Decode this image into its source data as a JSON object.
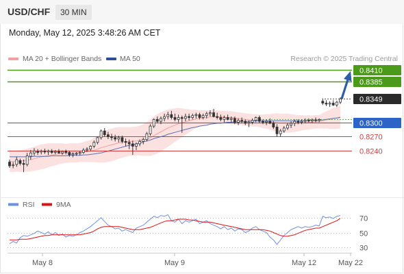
{
  "header": {
    "symbol": "USD/CHF",
    "timeframe": "30 MIN"
  },
  "timestamp": "Monday, May 12, 2025 3:48:26 AM CET",
  "credit": "Research © 2025 Trading Central",
  "colors": {
    "resistance": "#4c9a1a",
    "pivot": "#2b63c6",
    "support": "#d63b3b",
    "candle": "#333333",
    "band": "#fbdada",
    "ma20": "#f2a0a0",
    "ma50": "#5a6fb5",
    "rsi": "#6d8fe6",
    "rsi_ma": "#e11111",
    "arrow": "#2f5ea8"
  },
  "chart_data": [
    {
      "type": "candlestick",
      "legend": [
        {
          "name": "MA 20 + Bollinger Bands",
          "color": "#f2a0a0"
        },
        {
          "name": "MA 50",
          "color": "#2b4f9a"
        }
      ],
      "ylim": [
        0.8152,
        0.8418
      ],
      "levels": [
        {
          "value": 0.841,
          "label": "0.8410",
          "kind": "resistance"
        },
        {
          "value": 0.8385,
          "label": "0.8385",
          "kind": "resistance"
        },
        {
          "value": 0.8349,
          "label": "0.8349",
          "kind": "last"
        },
        {
          "value": 0.83,
          "label": "0.8300",
          "kind": "pivot"
        },
        {
          "value": 0.827,
          "label": "0.8270",
          "kind": "support"
        },
        {
          "value": 0.824,
          "label": "0.8240",
          "kind": "support"
        }
      ],
      "x_ticks": [
        "May 8",
        "May 9",
        "May 12",
        "May 22"
      ],
      "ohlc": [
        [
          0.8217,
          0.8222,
          0.8205,
          0.8209
        ],
        [
          0.821,
          0.8217,
          0.8204,
          0.8211
        ],
        [
          0.8212,
          0.8228,
          0.8207,
          0.8222
        ],
        [
          0.822,
          0.8224,
          0.821,
          0.8214
        ],
        [
          0.8214,
          0.8222,
          0.8196,
          0.8212
        ],
        [
          0.8212,
          0.8236,
          0.8208,
          0.823
        ],
        [
          0.8229,
          0.8242,
          0.8222,
          0.8236
        ],
        [
          0.8236,
          0.8246,
          0.823,
          0.824
        ],
        [
          0.8239,
          0.8244,
          0.8232,
          0.8237
        ],
        [
          0.8238,
          0.8243,
          0.8233,
          0.824
        ],
        [
          0.824,
          0.8245,
          0.8234,
          0.8238
        ],
        [
          0.8238,
          0.8243,
          0.8232,
          0.824
        ],
        [
          0.824,
          0.8244,
          0.8234,
          0.8237
        ],
        [
          0.8237,
          0.8242,
          0.8233,
          0.8239
        ],
        [
          0.8239,
          0.8244,
          0.8234,
          0.8236
        ],
        [
          0.8236,
          0.8241,
          0.8232,
          0.8239
        ],
        [
          0.8239,
          0.8243,
          0.8233,
          0.8237
        ],
        [
          0.8237,
          0.824,
          0.8228,
          0.8232
        ],
        [
          0.8232,
          0.8237,
          0.8227,
          0.8234
        ],
        [
          0.8234,
          0.8238,
          0.823,
          0.8235
        ],
        [
          0.8235,
          0.824,
          0.8231,
          0.8237
        ],
        [
          0.8237,
          0.8246,
          0.8234,
          0.8242
        ],
        [
          0.8242,
          0.8248,
          0.8238,
          0.8244
        ],
        [
          0.8244,
          0.8252,
          0.824,
          0.825
        ],
        [
          0.825,
          0.8262,
          0.8246,
          0.8258
        ],
        [
          0.8258,
          0.827,
          0.8254,
          0.8268
        ],
        [
          0.8268,
          0.8285,
          0.8264,
          0.8282
        ],
        [
          0.8282,
          0.8288,
          0.827,
          0.8274
        ],
        [
          0.8274,
          0.828,
          0.8265,
          0.827
        ],
        [
          0.827,
          0.8276,
          0.8262,
          0.8268
        ],
        [
          0.8268,
          0.8274,
          0.826,
          0.8265
        ],
        [
          0.8265,
          0.8272,
          0.8258,
          0.8268
        ],
        [
          0.8268,
          0.8272,
          0.8256,
          0.826
        ],
        [
          0.826,
          0.8266,
          0.825,
          0.8258
        ],
        [
          0.8258,
          0.8264,
          0.8244,
          0.8255
        ],
        [
          0.8255,
          0.8262,
          0.8232,
          0.825
        ],
        [
          0.825,
          0.8258,
          0.8242,
          0.8255
        ],
        [
          0.8255,
          0.8264,
          0.825,
          0.826
        ],
        [
          0.826,
          0.8268,
          0.8254,
          0.8264
        ],
        [
          0.8264,
          0.828,
          0.826,
          0.8276
        ],
        [
          0.8276,
          0.8296,
          0.8272,
          0.8292
        ],
        [
          0.8292,
          0.8308,
          0.8288,
          0.8306
        ],
        [
          0.8306,
          0.8312,
          0.8298,
          0.8302
        ],
        [
          0.8302,
          0.8312,
          0.8296,
          0.8308
        ],
        [
          0.8308,
          0.8318,
          0.8302,
          0.8312
        ],
        [
          0.8312,
          0.8322,
          0.8306,
          0.8316
        ],
        [
          0.8316,
          0.8324,
          0.8306,
          0.831
        ],
        [
          0.831,
          0.8318,
          0.8302,
          0.8306
        ],
        [
          0.8306,
          0.8316,
          0.83,
          0.831
        ],
        [
          0.831,
          0.8314,
          0.8278,
          0.8308
        ],
        [
          0.8308,
          0.8318,
          0.8302,
          0.8312
        ],
        [
          0.8312,
          0.8318,
          0.8304,
          0.831
        ],
        [
          0.831,
          0.8318,
          0.8306,
          0.8314
        ],
        [
          0.8314,
          0.832,
          0.8308,
          0.8316
        ],
        [
          0.8316,
          0.832,
          0.8306,
          0.831
        ],
        [
          0.831,
          0.8318,
          0.8306,
          0.8314
        ],
        [
          0.8314,
          0.8322,
          0.8308,
          0.8318
        ],
        [
          0.8318,
          0.8325,
          0.8312,
          0.832
        ],
        [
          0.832,
          0.8328,
          0.831,
          0.8312
        ],
        [
          0.8312,
          0.832,
          0.8306,
          0.831
        ],
        [
          0.831,
          0.8316,
          0.8302,
          0.8306
        ],
        [
          0.8306,
          0.8314,
          0.83,
          0.831
        ],
        [
          0.831,
          0.8316,
          0.8304,
          0.8306
        ],
        [
          0.8306,
          0.8312,
          0.83,
          0.8308
        ],
        [
          0.8308,
          0.8312,
          0.8296,
          0.83
        ],
        [
          0.83,
          0.8308,
          0.8294,
          0.8304
        ],
        [
          0.8304,
          0.831,
          0.8298,
          0.8302
        ],
        [
          0.8302,
          0.8306,
          0.8294,
          0.8298
        ],
        [
          0.8298,
          0.8304,
          0.829,
          0.83
        ],
        [
          0.83,
          0.8308,
          0.8296,
          0.8304
        ],
        [
          0.8304,
          0.8312,
          0.83,
          0.831
        ],
        [
          0.831,
          0.8314,
          0.8298,
          0.8302
        ],
        [
          0.8302,
          0.8306,
          0.8296,
          0.83
        ],
        [
          0.83,
          0.8306,
          0.8294,
          0.8302
        ],
        [
          0.8302,
          0.8308,
          0.8296,
          0.8298
        ],
        [
          0.8298,
          0.8302,
          0.8286,
          0.829
        ],
        [
          0.829,
          0.8296,
          0.827,
          0.8276
        ],
        [
          0.8276,
          0.8286,
          0.827,
          0.8282
        ],
        [
          0.8282,
          0.8292,
          0.8278,
          0.8288
        ],
        [
          0.8288,
          0.8298,
          0.8284,
          0.8294
        ],
        [
          0.8294,
          0.8302,
          0.8288,
          0.8298
        ],
        [
          0.8298,
          0.8306,
          0.8292,
          0.8302
        ],
        [
          0.8302,
          0.8306,
          0.8296,
          0.83
        ],
        [
          0.83,
          0.8306,
          0.8296,
          0.8302
        ],
        [
          0.8302,
          0.8308,
          0.8298,
          0.8304
        ],
        [
          0.8304,
          0.8308,
          0.83,
          0.8303
        ],
        [
          0.8303,
          0.8308,
          0.8299,
          0.8305
        ],
        [
          0.8305,
          0.831,
          0.83,
          0.8304
        ],
        [
          0.8304,
          0.8308,
          0.83,
          0.8306
        ],
        [
          0.8344,
          0.835,
          0.8336,
          0.834
        ],
        [
          0.834,
          0.8346,
          0.8334,
          0.8338
        ],
        [
          0.8338,
          0.8344,
          0.8332,
          0.834
        ],
        [
          0.834,
          0.8346,
          0.8334,
          0.8336
        ],
        [
          0.8336,
          0.8345,
          0.8332,
          0.8342
        ],
        [
          0.8342,
          0.8352,
          0.8338,
          0.8349
        ]
      ],
      "ma20": [
        0.8218,
        0.8218,
        0.8219,
        0.8219,
        0.822,
        0.8221,
        0.8222,
        0.8224,
        0.8226,
        0.8228,
        0.8229,
        0.8231,
        0.8232,
        0.8233,
        0.8234,
        0.8235,
        0.8235,
        0.8236,
        0.8236,
        0.8236,
        0.8237,
        0.8238,
        0.8239,
        0.824,
        0.8242,
        0.8244,
        0.8247,
        0.8249,
        0.8251,
        0.8253,
        0.8255,
        0.8257,
        0.8258,
        0.8259,
        0.826,
        0.826,
        0.8261,
        0.8262,
        0.8263,
        0.8265,
        0.8268,
        0.8272,
        0.8276,
        0.828,
        0.8284,
        0.8288,
        0.8291,
        0.8294,
        0.8297,
        0.8299,
        0.8301,
        0.8303,
        0.8305,
        0.8307,
        0.8308,
        0.8309,
        0.831,
        0.8311,
        0.8312,
        0.8312,
        0.8311,
        0.8311,
        0.831,
        0.831,
        0.8309,
        0.8308,
        0.8307,
        0.8306,
        0.8305,
        0.8304,
        0.8304,
        0.8303,
        0.8302,
        0.8302,
        0.8301,
        0.83,
        0.8299,
        0.8298,
        0.8298,
        0.8298,
        0.8298,
        0.8298,
        0.8298,
        0.8299,
        0.8299,
        0.83,
        0.83,
        0.8301,
        0.8301,
        0.8303,
        0.8305,
        0.8306,
        0.8308,
        0.8309,
        0.8311
      ],
      "bb_width": [
        0.0022,
        0.0022,
        0.0022,
        0.0023,
        0.0023,
        0.0024,
        0.0025,
        0.0025,
        0.0026,
        0.0026,
        0.0026,
        0.0025,
        0.0024,
        0.0023,
        0.0022,
        0.0021,
        0.002,
        0.002,
        0.002,
        0.002,
        0.002,
        0.0021,
        0.0022,
        0.0023,
        0.0025,
        0.0028,
        0.0031,
        0.0033,
        0.0034,
        0.0034,
        0.0034,
        0.0033,
        0.0032,
        0.0031,
        0.003,
        0.003,
        0.003,
        0.0031,
        0.0033,
        0.0035,
        0.0038,
        0.004,
        0.0041,
        0.0041,
        0.004,
        0.0039,
        0.0037,
        0.0035,
        0.0033,
        0.003,
        0.0027,
        0.0024,
        0.0021,
        0.0019,
        0.0017,
        0.0016,
        0.0015,
        0.0014,
        0.0014,
        0.0013,
        0.0013,
        0.0013,
        0.0013,
        0.0013,
        0.0013,
        0.0013,
        0.0013,
        0.0013,
        0.0013,
        0.0013,
        0.0013,
        0.0013,
        0.0014,
        0.0015,
        0.0016,
        0.0018,
        0.002,
        0.002,
        0.002,
        0.002,
        0.0019,
        0.0018,
        0.0017,
        0.0016,
        0.0015,
        0.0015,
        0.0014,
        0.0014,
        0.0014,
        0.0016,
        0.0018,
        0.002,
        0.0022,
        0.0023,
        0.0024
      ],
      "ma50": [
        0.8228,
        0.8228,
        0.8228,
        0.8228,
        0.8228,
        0.8228,
        0.8228,
        0.8229,
        0.8229,
        0.8229,
        0.8229,
        0.8229,
        0.823,
        0.823,
        0.823,
        0.823,
        0.823,
        0.8231,
        0.8231,
        0.8231,
        0.8231,
        0.8232,
        0.8232,
        0.8233,
        0.8234,
        0.8235,
        0.8236,
        0.8238,
        0.824,
        0.8242,
        0.8244,
        0.8246,
        0.8248,
        0.825,
        0.8252,
        0.8253,
        0.8255,
        0.8257,
        0.8259,
        0.8261,
        0.8263,
        0.8266,
        0.8268,
        0.827,
        0.8272,
        0.8275,
        0.8277,
        0.8279,
        0.8281,
        0.8283,
        0.8285,
        0.8287,
        0.8289,
        0.829,
        0.8292,
        0.8293,
        0.8294,
        0.8296,
        0.8297,
        0.8298,
        0.8298,
        0.8299,
        0.83,
        0.83,
        0.8301,
        0.8301,
        0.8302,
        0.8302,
        0.8302,
        0.8302,
        0.8303,
        0.8303,
        0.8303,
        0.8303,
        0.8303,
        0.8303,
        0.8303,
        0.8303,
        0.8303,
        0.8303,
        0.8303,
        0.8303,
        0.8303,
        0.8303,
        0.8303,
        0.8304,
        0.8304,
        0.8304,
        0.8304,
        0.8305,
        0.8306,
        0.8307,
        0.8308,
        0.8309,
        0.831
      ],
      "projection": {
        "from": 0.8349,
        "to": 0.841
      }
    },
    {
      "type": "line",
      "legend": [
        {
          "name": "RSI",
          "color": "#6d8fe6"
        },
        {
          "name": "9MA",
          "color": "#e11111"
        }
      ],
      "ylim": [
        20,
        80
      ],
      "y_ticks": [
        70,
        50,
        30
      ],
      "rsi": [
        35,
        38,
        36,
        43,
        46,
        45,
        47,
        49,
        52,
        50,
        48,
        51,
        47,
        50,
        46,
        48,
        44,
        46,
        45,
        47,
        50,
        52,
        55,
        58,
        62,
        66,
        70,
        65,
        60,
        58,
        55,
        56,
        52,
        54,
        52,
        50,
        56,
        58,
        60,
        64,
        68,
        72,
        70,
        73,
        72,
        74,
        66,
        64,
        68,
        62,
        66,
        64,
        66,
        68,
        62,
        64,
        66,
        62,
        60,
        58,
        55,
        58,
        54,
        56,
        52,
        55,
        54,
        50,
        52,
        56,
        58,
        54,
        52,
        50,
        44,
        40,
        34,
        40,
        46,
        50,
        54,
        56,
        58,
        56,
        58,
        57,
        58,
        60,
        59,
        72,
        70,
        71,
        69,
        72,
        73
      ],
      "rsi_ma": [
        40,
        40,
        40,
        41,
        41,
        41,
        42,
        43,
        44,
        45,
        46,
        46,
        47,
        47,
        47,
        47,
        47,
        47,
        47,
        47,
        47,
        48,
        49,
        50,
        52,
        55,
        57,
        58,
        58,
        58,
        58,
        58,
        57,
        56,
        55,
        54,
        54,
        54,
        55,
        56,
        57,
        59,
        61,
        63,
        65,
        66,
        66,
        67,
        68,
        68,
        68,
        67,
        67,
        66,
        65,
        64,
        64,
        64,
        63,
        62,
        61,
        60,
        59,
        58,
        57,
        56,
        55,
        54,
        54,
        54,
        54,
        54,
        54,
        53,
        52,
        50,
        48,
        46,
        45,
        45,
        46,
        47,
        49,
        51,
        53,
        54,
        55,
        56,
        56,
        58,
        60,
        62,
        64,
        66,
        69
      ]
    }
  ]
}
